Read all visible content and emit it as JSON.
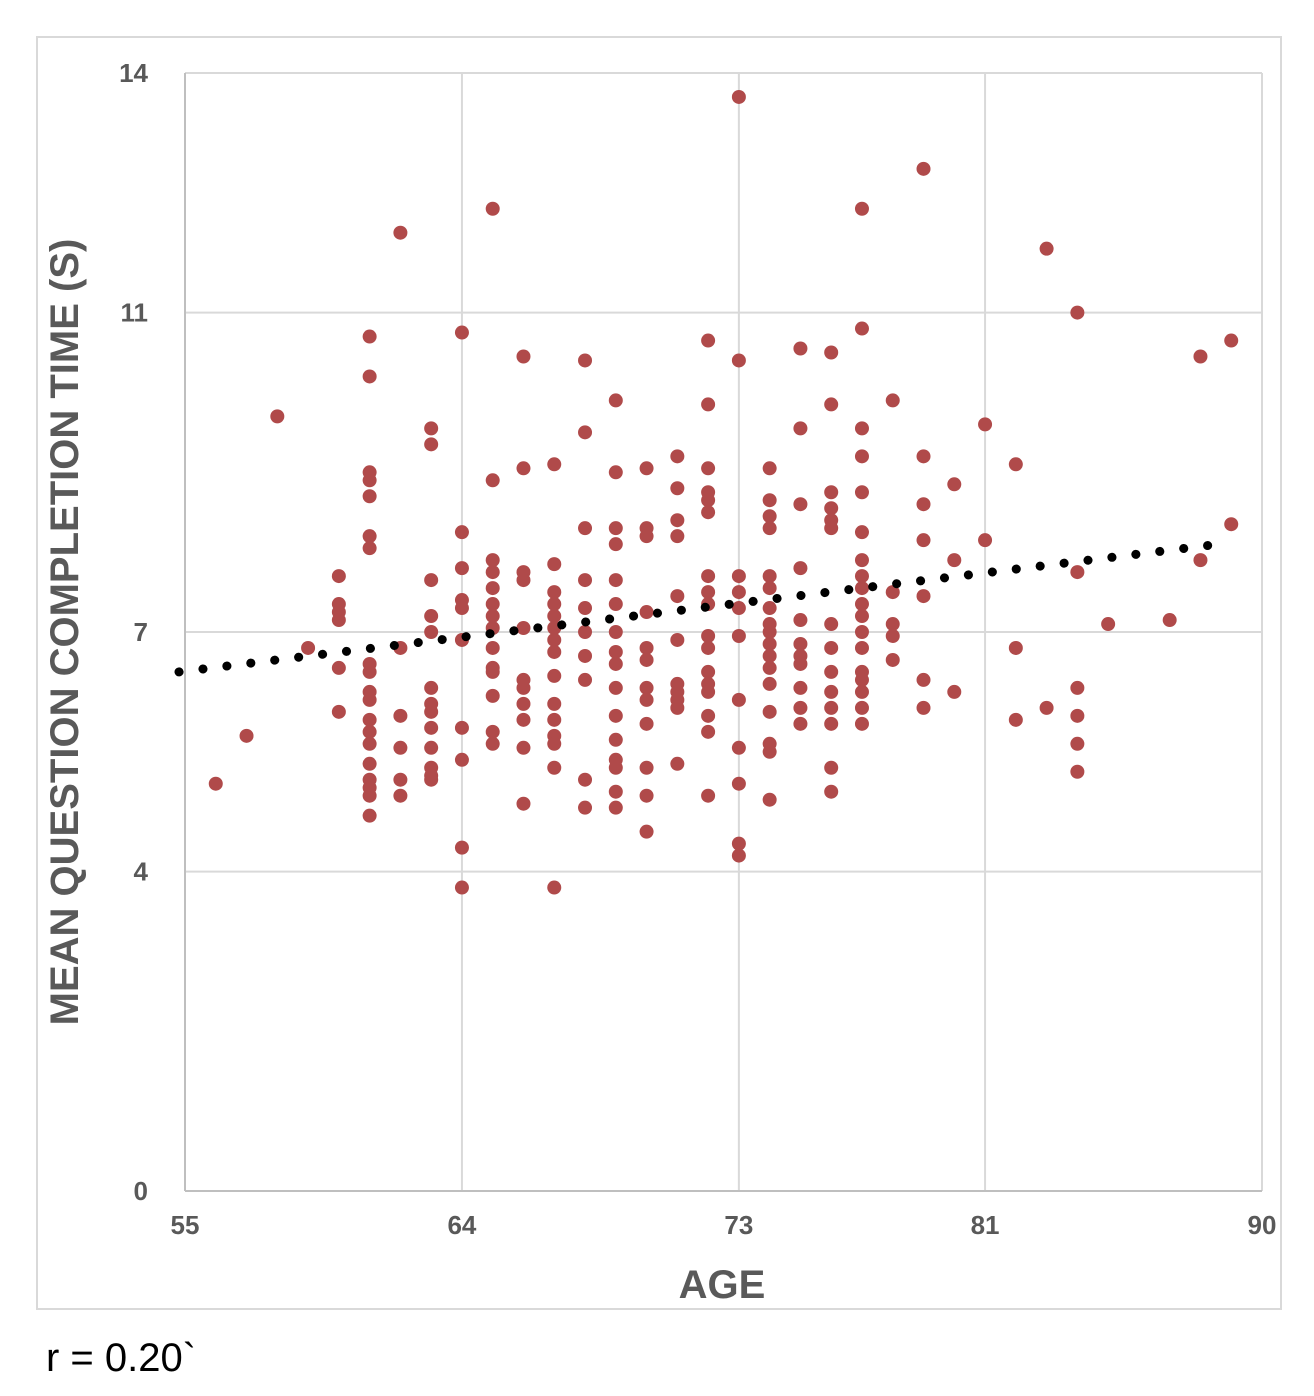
{
  "chart_data": {
    "type": "scatter",
    "xlabel": "AGE",
    "ylabel": "MEAN QUESTION COMPLETION TIME (S)",
    "x_ticks": [
      "55",
      "64",
      "73",
      "81",
      "90"
    ],
    "y_ticks": [
      "0",
      "4",
      "7",
      "11",
      "14"
    ],
    "xlim": [
      55,
      90
    ],
    "ylim": [
      0,
      14
    ],
    "grid": true,
    "marker_color": "#b04a4a",
    "trendline": {
      "style": "dotted",
      "color": "#000000",
      "points": [
        [
          55,
          6.5
        ],
        [
          88.6,
          8.1
        ]
      ]
    },
    "series": [
      {
        "points": [
          [
            56,
            5.1
          ],
          [
            57,
            5.7
          ],
          [
            58,
            9.7
          ],
          [
            59,
            6.8
          ],
          [
            60,
            7.7
          ],
          [
            60,
            7.35
          ],
          [
            60,
            7.25
          ],
          [
            60,
            7.15
          ],
          [
            60,
            6.55
          ],
          [
            60,
            6.0
          ],
          [
            61,
            10.7
          ],
          [
            61,
            10.2
          ],
          [
            61,
            9.0
          ],
          [
            61,
            8.9
          ],
          [
            61,
            8.7
          ],
          [
            61,
            8.2
          ],
          [
            61,
            8.05
          ],
          [
            61,
            6.6
          ],
          [
            61,
            6.5
          ],
          [
            61,
            6.25
          ],
          [
            61,
            6.15
          ],
          [
            61,
            5.9
          ],
          [
            61,
            5.75
          ],
          [
            61,
            5.6
          ],
          [
            61,
            5.35
          ],
          [
            61,
            5.15
          ],
          [
            61,
            5.05
          ],
          [
            61,
            4.95
          ],
          [
            61,
            4.7
          ],
          [
            62,
            12.0
          ],
          [
            62,
            6.8
          ],
          [
            62,
            5.95
          ],
          [
            62,
            5.55
          ],
          [
            62,
            5.15
          ],
          [
            62,
            4.95
          ],
          [
            63,
            9.55
          ],
          [
            63,
            9.35
          ],
          [
            63,
            7.65
          ],
          [
            63,
            7.2
          ],
          [
            63,
            7.0
          ],
          [
            63,
            6.3
          ],
          [
            63,
            6.1
          ],
          [
            63,
            6.0
          ],
          [
            63,
            5.8
          ],
          [
            63,
            5.55
          ],
          [
            63,
            5.3
          ],
          [
            63,
            5.2
          ],
          [
            63,
            5.15
          ],
          [
            64,
            10.75
          ],
          [
            64,
            8.25
          ],
          [
            64,
            7.8
          ],
          [
            64,
            7.4
          ],
          [
            64,
            7.3
          ],
          [
            64,
            6.9
          ],
          [
            64,
            5.8
          ],
          [
            64,
            5.4
          ],
          [
            64,
            4.3
          ],
          [
            64,
            3.8
          ],
          [
            65,
            12.3
          ],
          [
            65,
            8.9
          ],
          [
            65,
            7.9
          ],
          [
            65,
            7.75
          ],
          [
            65,
            7.55
          ],
          [
            65,
            7.35
          ],
          [
            65,
            7.2
          ],
          [
            65,
            7.05
          ],
          [
            65,
            6.8
          ],
          [
            65,
            6.55
          ],
          [
            65,
            6.5
          ],
          [
            65,
            6.2
          ],
          [
            65,
            5.75
          ],
          [
            65,
            5.6
          ],
          [
            66,
            10.45
          ],
          [
            66,
            9.05
          ],
          [
            66,
            7.75
          ],
          [
            66,
            7.65
          ],
          [
            66,
            7.05
          ],
          [
            66,
            6.4
          ],
          [
            66,
            6.3
          ],
          [
            66,
            6.1
          ],
          [
            66,
            5.9
          ],
          [
            66,
            5.55
          ],
          [
            66,
            4.85
          ],
          [
            67,
            9.1
          ],
          [
            67,
            7.85
          ],
          [
            67,
            7.5
          ],
          [
            67,
            7.35
          ],
          [
            67,
            7.2
          ],
          [
            67,
            7.05
          ],
          [
            67,
            6.9
          ],
          [
            67,
            6.75
          ],
          [
            67,
            6.45
          ],
          [
            67,
            6.1
          ],
          [
            67,
            5.9
          ],
          [
            67,
            5.7
          ],
          [
            67,
            5.6
          ],
          [
            67,
            5.3
          ],
          [
            67,
            3.8
          ],
          [
            68,
            10.4
          ],
          [
            68,
            9.5
          ],
          [
            68,
            8.3
          ],
          [
            68,
            7.65
          ],
          [
            68,
            7.3
          ],
          [
            68,
            7.0
          ],
          [
            68,
            6.7
          ],
          [
            68,
            6.4
          ],
          [
            68,
            5.15
          ],
          [
            68,
            4.8
          ],
          [
            69,
            9.9
          ],
          [
            69,
            9.0
          ],
          [
            69,
            8.3
          ],
          [
            69,
            8.1
          ],
          [
            69,
            7.65
          ],
          [
            69,
            7.35
          ],
          [
            69,
            7.0
          ],
          [
            69,
            6.75
          ],
          [
            69,
            6.6
          ],
          [
            69,
            6.3
          ],
          [
            69,
            5.95
          ],
          [
            69,
            5.65
          ],
          [
            69,
            5.4
          ],
          [
            69,
            5.3
          ],
          [
            69,
            5.0
          ],
          [
            69,
            4.8
          ],
          [
            70,
            9.05
          ],
          [
            70,
            8.3
          ],
          [
            70,
            8.2
          ],
          [
            70,
            7.25
          ],
          [
            70,
            6.8
          ],
          [
            70,
            6.65
          ],
          [
            70,
            6.3
          ],
          [
            70,
            6.15
          ],
          [
            70,
            5.85
          ],
          [
            70,
            5.3
          ],
          [
            70,
            4.95
          ],
          [
            70,
            4.5
          ],
          [
            71,
            9.2
          ],
          [
            71,
            8.8
          ],
          [
            71,
            8.4
          ],
          [
            71,
            8.2
          ],
          [
            71,
            7.45
          ],
          [
            71,
            6.9
          ],
          [
            71,
            6.35
          ],
          [
            71,
            6.25
          ],
          [
            71,
            6.15
          ],
          [
            71,
            6.05
          ],
          [
            71,
            5.35
          ],
          [
            72,
            10.65
          ],
          [
            72,
            9.85
          ],
          [
            72,
            9.05
          ],
          [
            72,
            8.75
          ],
          [
            72,
            8.65
          ],
          [
            72,
            8.5
          ],
          [
            72,
            7.7
          ],
          [
            72,
            7.5
          ],
          [
            72,
            7.35
          ],
          [
            72,
            6.95
          ],
          [
            72,
            6.8
          ],
          [
            72,
            6.5
          ],
          [
            72,
            6.35
          ],
          [
            72,
            6.25
          ],
          [
            72,
            5.95
          ],
          [
            72,
            5.75
          ],
          [
            72,
            4.95
          ],
          [
            73,
            13.7
          ],
          [
            73,
            10.4
          ],
          [
            73,
            7.7
          ],
          [
            73,
            7.5
          ],
          [
            73,
            7.3
          ],
          [
            73,
            6.95
          ],
          [
            73,
            6.15
          ],
          [
            73,
            5.55
          ],
          [
            73,
            5.1
          ],
          [
            73,
            4.35
          ],
          [
            73,
            4.2
          ],
          [
            74,
            9.05
          ],
          [
            74,
            8.65
          ],
          [
            74,
            8.45
          ],
          [
            74,
            8.3
          ],
          [
            74,
            7.7
          ],
          [
            74,
            7.55
          ],
          [
            74,
            7.3
          ],
          [
            74,
            7.1
          ],
          [
            74,
            7.0
          ],
          [
            74,
            6.85
          ],
          [
            74,
            6.7
          ],
          [
            74,
            6.55
          ],
          [
            74,
            6.35
          ],
          [
            74,
            6.0
          ],
          [
            74,
            5.6
          ],
          [
            74,
            5.5
          ],
          [
            74,
            4.9
          ],
          [
            75,
            10.55
          ],
          [
            75,
            9.55
          ],
          [
            75,
            8.6
          ],
          [
            75,
            7.8
          ],
          [
            75,
            7.15
          ],
          [
            75,
            6.85
          ],
          [
            75,
            6.7
          ],
          [
            75,
            6.6
          ],
          [
            75,
            6.3
          ],
          [
            75,
            6.05
          ],
          [
            75,
            5.85
          ],
          [
            76,
            10.5
          ],
          [
            76,
            9.85
          ],
          [
            76,
            8.75
          ],
          [
            76,
            8.55
          ],
          [
            76,
            8.4
          ],
          [
            76,
            8.3
          ],
          [
            76,
            7.1
          ],
          [
            76,
            6.8
          ],
          [
            76,
            6.5
          ],
          [
            76,
            6.25
          ],
          [
            76,
            6.05
          ],
          [
            76,
            5.85
          ],
          [
            76,
            5.3
          ],
          [
            76,
            5.0
          ],
          [
            77,
            12.3
          ],
          [
            77,
            10.8
          ],
          [
            77,
            9.55
          ],
          [
            77,
            9.2
          ],
          [
            77,
            8.75
          ],
          [
            77,
            8.25
          ],
          [
            77,
            7.9
          ],
          [
            77,
            7.7
          ],
          [
            77,
            7.55
          ],
          [
            77,
            7.35
          ],
          [
            77,
            7.2
          ],
          [
            77,
            7.0
          ],
          [
            77,
            6.8
          ],
          [
            77,
            6.5
          ],
          [
            77,
            6.4
          ],
          [
            77,
            6.25
          ],
          [
            77,
            6.05
          ],
          [
            77,
            5.85
          ],
          [
            78,
            9.9
          ],
          [
            78,
            7.5
          ],
          [
            78,
            7.1
          ],
          [
            78,
            6.95
          ],
          [
            78,
            6.65
          ],
          [
            79,
            12.8
          ],
          [
            79,
            9.2
          ],
          [
            79,
            8.6
          ],
          [
            79,
            8.15
          ],
          [
            79,
            7.45
          ],
          [
            79,
            6.4
          ],
          [
            79,
            6.05
          ],
          [
            80,
            8.85
          ],
          [
            80,
            7.9
          ],
          [
            80,
            6.25
          ],
          [
            81,
            9.6
          ],
          [
            81,
            8.15
          ],
          [
            82,
            9.1
          ],
          [
            82,
            6.8
          ],
          [
            82,
            5.9
          ],
          [
            83,
            11.8
          ],
          [
            83,
            6.05
          ],
          [
            84,
            11.0
          ],
          [
            84,
            7.75
          ],
          [
            84,
            6.3
          ],
          [
            84,
            5.95
          ],
          [
            84,
            5.6
          ],
          [
            84,
            5.25
          ],
          [
            85,
            7.1
          ],
          [
            87,
            7.15
          ],
          [
            88,
            10.45
          ],
          [
            88,
            7.9
          ],
          [
            89,
            10.65
          ],
          [
            89,
            8.35
          ]
        ]
      }
    ],
    "annotation": "r = 0.20`"
  }
}
